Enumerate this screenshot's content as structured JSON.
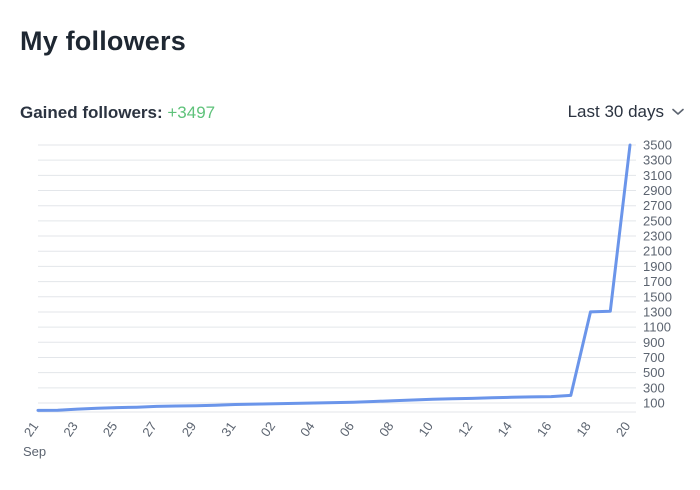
{
  "header": {
    "title": "My followers"
  },
  "summary": {
    "label": "Gained followers:",
    "value": "+3497"
  },
  "range_selector": {
    "label": "Last 30 days",
    "icon": "chevron-down-icon"
  },
  "colors": {
    "line": "#6b95ea",
    "positive": "#5ec27a",
    "grid": "#e3e6ea"
  },
  "chart_data": {
    "type": "line",
    "title": "",
    "xlabel": "",
    "ylabel": "",
    "x_ticks": [
      "21",
      "23",
      "25",
      "27",
      "29",
      "31",
      "02",
      "04",
      "06",
      "08",
      "10",
      "12",
      "14",
      "16",
      "18",
      "20"
    ],
    "x_month_label": "Sep",
    "y_ticks": [
      100,
      300,
      500,
      700,
      900,
      1100,
      1300,
      1500,
      1700,
      1900,
      2100,
      2300,
      2500,
      2700,
      2900,
      3100,
      3300,
      3500
    ],
    "ylim": [
      0,
      3500
    ],
    "grid": true,
    "series": [
      {
        "name": "",
        "x": [
          "21",
          "22",
          "23",
          "24",
          "25",
          "26",
          "27",
          "28",
          "29",
          "30",
          "31",
          "01",
          "02",
          "03",
          "04",
          "05",
          "06",
          "07",
          "08",
          "09",
          "10",
          "11",
          "12",
          "13",
          "14",
          "15",
          "16",
          "17",
          "18",
          "19",
          "20"
        ],
        "values": [
          3,
          5,
          20,
          30,
          40,
          45,
          55,
          60,
          65,
          70,
          80,
          85,
          90,
          95,
          100,
          105,
          110,
          120,
          130,
          140,
          150,
          155,
          160,
          170,
          175,
          180,
          185,
          200,
          1300,
          1310,
          3500
        ]
      }
    ]
  }
}
